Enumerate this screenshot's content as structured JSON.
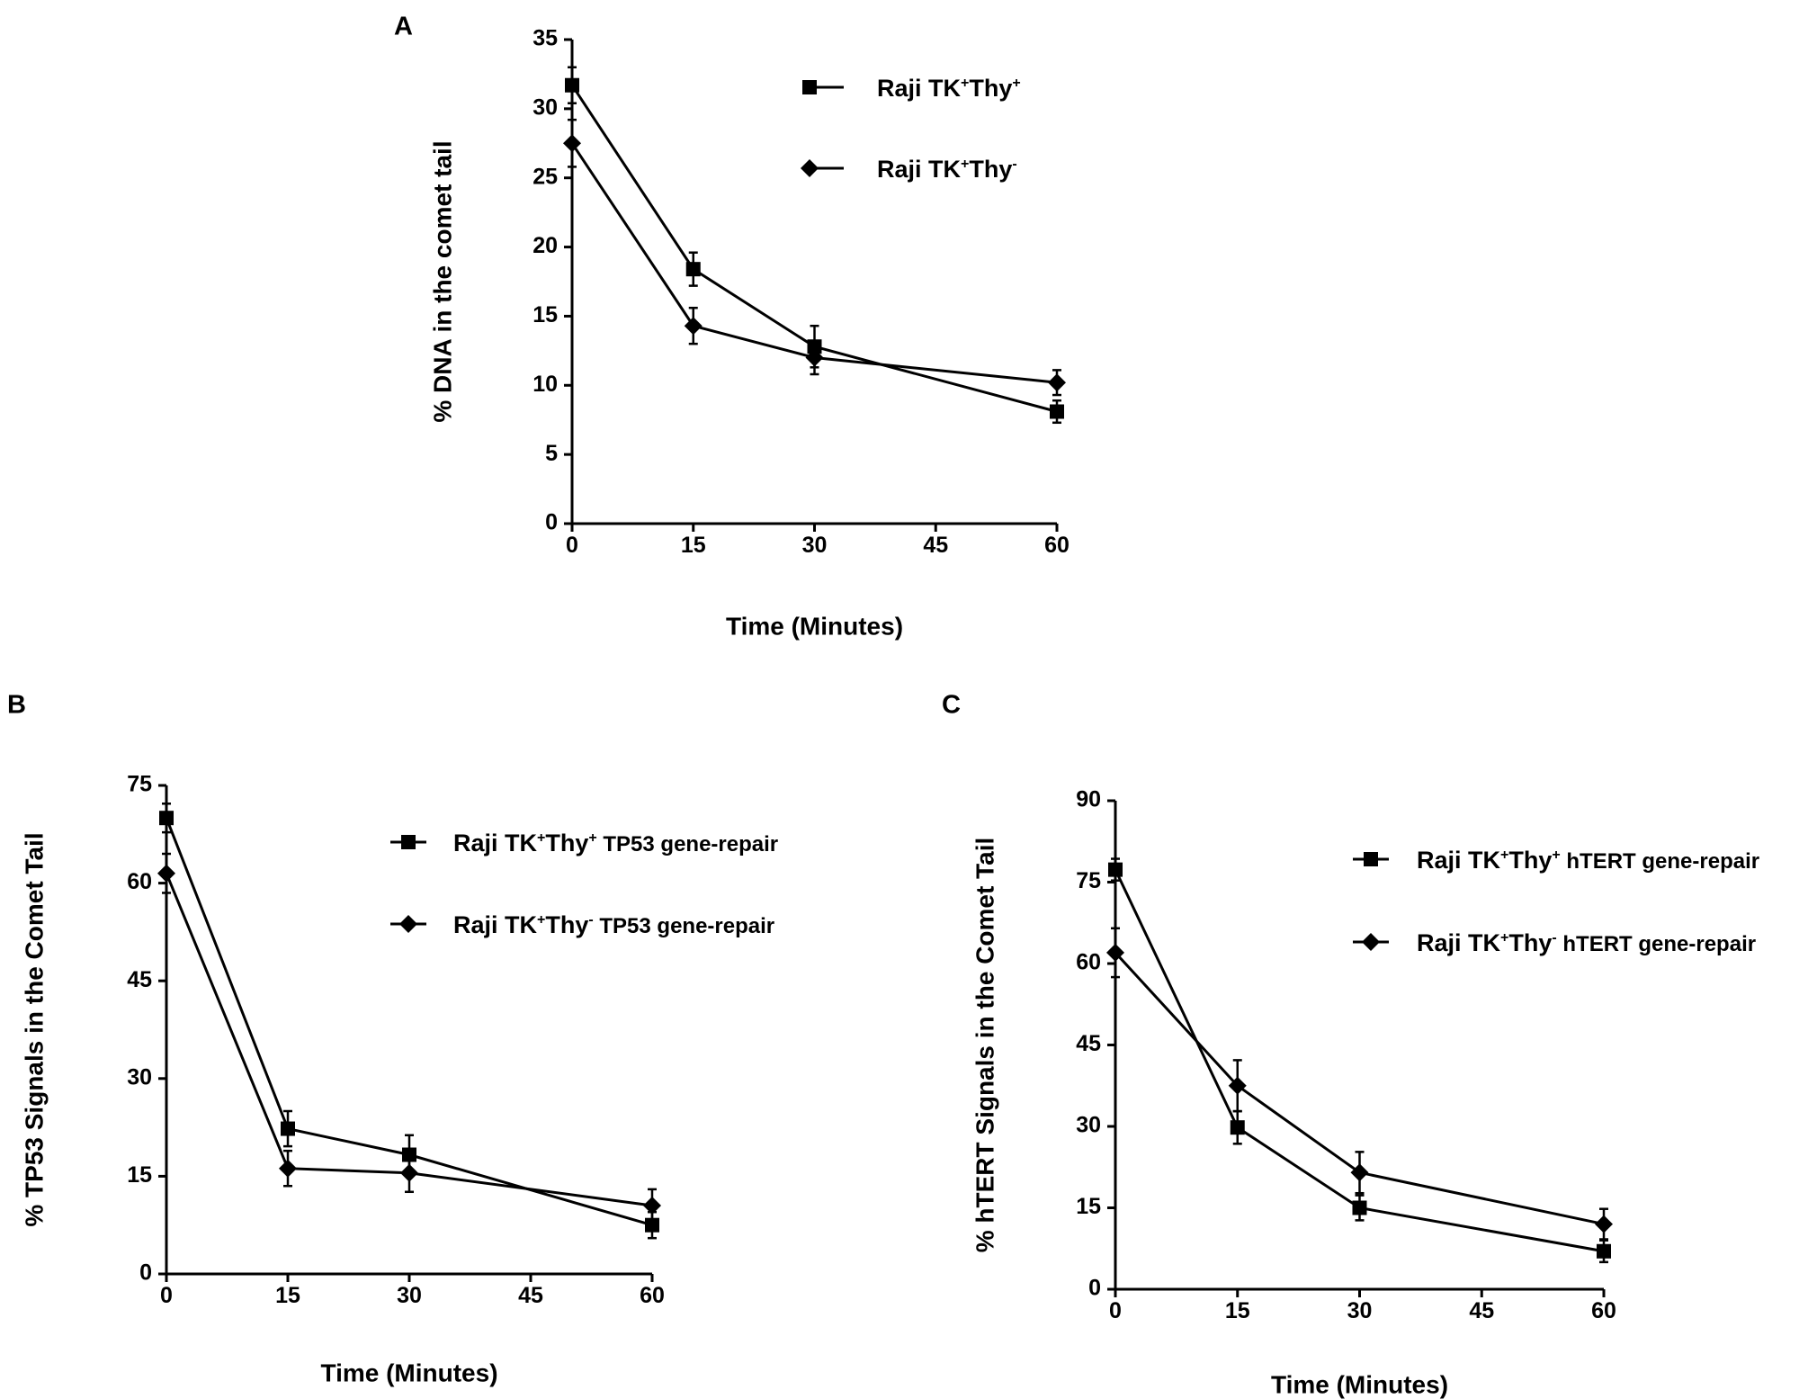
{
  "figure": {
    "chart_data": [
      {
        "type": "line",
        "panel_label": "A",
        "title": "",
        "xlabel": "Time (Minutes)",
        "ylabel": "% DNA in the comet tail",
        "x": [
          0,
          15,
          30,
          60
        ],
        "xticks": [
          "0",
          "15",
          "30",
          "45",
          "60"
        ],
        "xlim": [
          0,
          60
        ],
        "yticks": [
          "0",
          "5",
          "10",
          "15",
          "20",
          "25",
          "30",
          "35"
        ],
        "ylim": [
          0,
          35
        ],
        "grid": false,
        "legend_position": "top-right",
        "series": [
          {
            "name": "Raji TK+Thy+",
            "marker": "square",
            "legend": {
              "base": "Raji TK",
              "sup1": "+",
              "mid": "Thy",
              "sup2": "+",
              "suffix": ""
            },
            "values": [
              31.7,
              18.4,
              12.8,
              8.1
            ],
            "errors": [
              1.3,
              1.2,
              1.5,
              0.8
            ]
          },
          {
            "name": "Raji TK+Thy-",
            "marker": "diamond",
            "legend": {
              "base": "Raji TK",
              "sup1": "+",
              "mid": "Thy",
              "sup2": "-",
              "suffix": ""
            },
            "values": [
              27.5,
              14.3,
              12.0,
              10.2
            ],
            "errors": [
              1.7,
              1.3,
              1.2,
              0.9
            ]
          }
        ]
      },
      {
        "type": "line",
        "panel_label": "B",
        "title": "",
        "xlabel": "Time (Minutes)",
        "ylabel": "% TP53 Signals in the Comet Tail",
        "x": [
          0,
          15,
          30,
          60
        ],
        "xticks": [
          "0",
          "15",
          "30",
          "45",
          "60"
        ],
        "xlim": [
          0,
          60
        ],
        "yticks": [
          "0",
          "15",
          "30",
          "45",
          "60",
          "75"
        ],
        "ylim": [
          0,
          75
        ],
        "grid": false,
        "legend_position": "top-right",
        "series": [
          {
            "name": "Raji TK+Thy+ TP53 gene-repair",
            "marker": "square",
            "legend": {
              "base": "Raji TK",
              "sup1": "+",
              "mid": "Thy",
              "sup2": "+",
              "suffix": " TP53 gene-repair"
            },
            "values": [
              70.0,
              22.3,
              18.3,
              7.5
            ],
            "errors": [
              2.2,
              2.7,
              3.0,
              2.0
            ]
          },
          {
            "name": "Raji TK+Thy- TP53 gene-repair",
            "marker": "diamond",
            "legend": {
              "base": "Raji TK",
              "sup1": "+",
              "mid": "Thy",
              "sup2": "-",
              "suffix": " TP53 gene-repair"
            },
            "values": [
              61.5,
              16.2,
              15.5,
              10.5
            ],
            "errors": [
              3.0,
              2.7,
              2.9,
              2.5
            ]
          }
        ]
      },
      {
        "type": "line",
        "panel_label": "C",
        "title": "",
        "xlabel": "Time (Minutes)",
        "ylabel": "% hTERT Signals in the Comet Tail",
        "x": [
          0,
          15,
          30,
          60
        ],
        "xticks": [
          "0",
          "15",
          "30",
          "45",
          "60"
        ],
        "xlim": [
          0,
          60
        ],
        "yticks": [
          "0",
          "15",
          "30",
          "45",
          "60",
          "75",
          "90"
        ],
        "ylim": [
          0,
          90
        ],
        "grid": false,
        "legend_position": "top-right",
        "series": [
          {
            "name": "Raji TK+Thy+ hTERT gene-repair",
            "marker": "square",
            "legend": {
              "base": "Raji TK",
              "sup1": "+",
              "mid": "Thy",
              "sup2": "+",
              "suffix": " hTERT gene-repair"
            },
            "values": [
              77.3,
              29.8,
              15.0,
              7.0
            ],
            "errors": [
              2.0,
              3.0,
              2.3,
              2.0
            ]
          },
          {
            "name": "Raji TK+Thy- hTERT gene-repair",
            "marker": "diamond",
            "legend": {
              "base": "Raji TK",
              "sup1": "+",
              "mid": "Thy",
              "sup2": "-",
              "suffix": " hTERT gene-repair"
            },
            "values": [
              62.0,
              37.5,
              21.5,
              12.0
            ],
            "errors": [
              4.5,
              4.7,
              3.8,
              2.8
            ]
          }
        ]
      }
    ]
  }
}
